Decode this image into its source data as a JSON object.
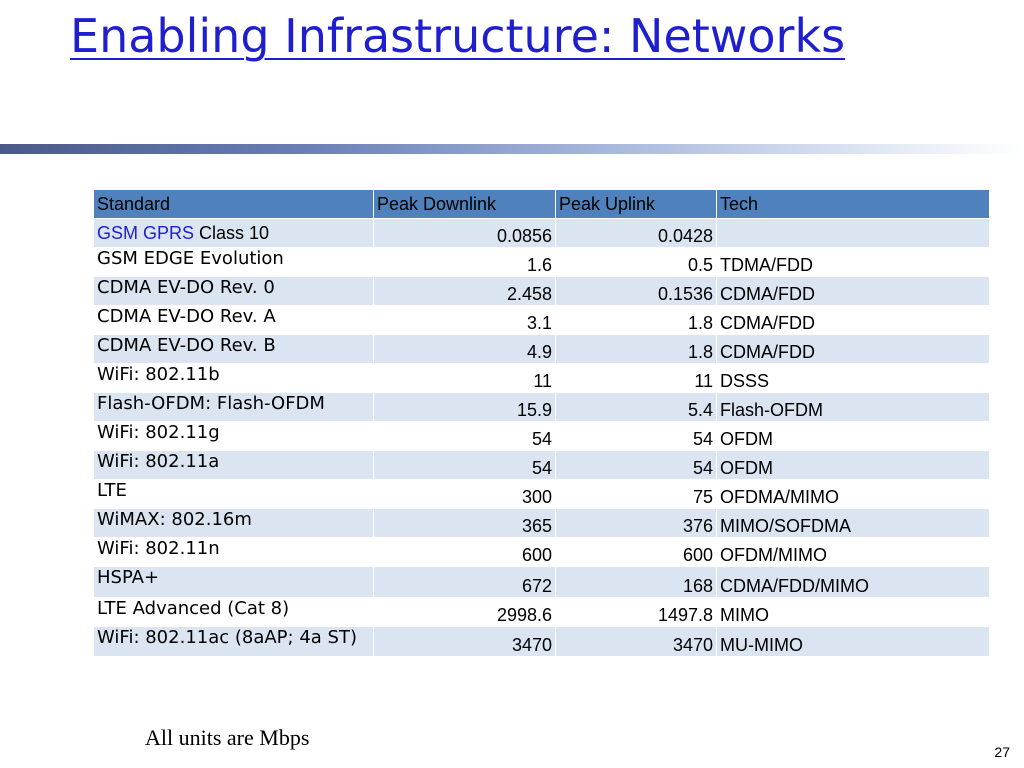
{
  "title": "Enabling Infrastructure: Networks",
  "table": {
    "headers": [
      "Standard",
      "Peak Downlink",
      "Peak Uplink",
      "Tech"
    ],
    "rows": [
      {
        "standard_prefix": "GSM GPRS",
        "standard": " Class 10",
        "downlink": "0.0856",
        "uplink": "0.0428",
        "tech": ""
      },
      {
        "standard_prefix": "",
        "standard": "GSM EDGE Evolution",
        "downlink": "1.6",
        "uplink": "0.5",
        "tech": "TDMA/FDD"
      },
      {
        "standard_prefix": "",
        "standard": "CDMA EV-DO Rev. 0",
        "downlink": "2.458",
        "uplink": "0.1536",
        "tech": "CDMA/FDD"
      },
      {
        "standard_prefix": "",
        "standard": "CDMA EV-DO Rev. A",
        "downlink": "3.1",
        "uplink": "1.8",
        "tech": "CDMA/FDD"
      },
      {
        "standard_prefix": "",
        "standard": "CDMA EV-DO Rev. B",
        "downlink": "4.9",
        "uplink": "1.8",
        "tech": "CDMA/FDD"
      },
      {
        "standard_prefix": "",
        "standard": "WiFi: 802.11b",
        "downlink": "11",
        "uplink": "11",
        "tech": "DSSS"
      },
      {
        "standard_prefix": "",
        "standard": "Flash-OFDM: Flash-OFDM",
        "downlink": "15.9",
        "uplink": "5.4",
        "tech": "Flash-OFDM"
      },
      {
        "standard_prefix": "",
        "standard": "WiFi: 802.11g",
        "downlink": "54",
        "uplink": "54",
        "tech": "OFDM"
      },
      {
        "standard_prefix": "",
        "standard": "WiFi: 802.11a",
        "downlink": "54",
        "uplink": "54",
        "tech": "OFDM"
      },
      {
        "standard_prefix": "",
        "standard": "LTE",
        "downlink": "300",
        "uplink": "75",
        "tech": "OFDMA/MIMO"
      },
      {
        "standard_prefix": "",
        "standard": "WiMAX: 802.16m",
        "downlink": "365",
        "uplink": "376",
        "tech": "MIMO/SOFDMA"
      },
      {
        "standard_prefix": "",
        "standard": "WiFi: 802.11n",
        "downlink": "600",
        "uplink": "600",
        "tech": "OFDM/MIMO"
      },
      {
        "standard_prefix": "",
        "standard": "HSPA+",
        "downlink": "672",
        "uplink": "168",
        "tech": "CDMA/FDD/MIMO"
      },
      {
        "standard_prefix": "",
        "standard": "LTE Advanced (Cat 8)",
        "downlink": "2998.6",
        "uplink": "1497.8",
        "tech": "MIMO"
      },
      {
        "standard_prefix": "",
        "standard": "WiFi: 802.11ac (8aAP; 4a ST)",
        "downlink": "3470",
        "uplink": "3470",
        "tech": "MU-MIMO"
      }
    ]
  },
  "note": "All units are Mbps",
  "page_number": "27",
  "colors": {
    "title": "#1f1fd0",
    "header_fill": "#4f81bd",
    "band_fill": "#dbe5f1"
  }
}
